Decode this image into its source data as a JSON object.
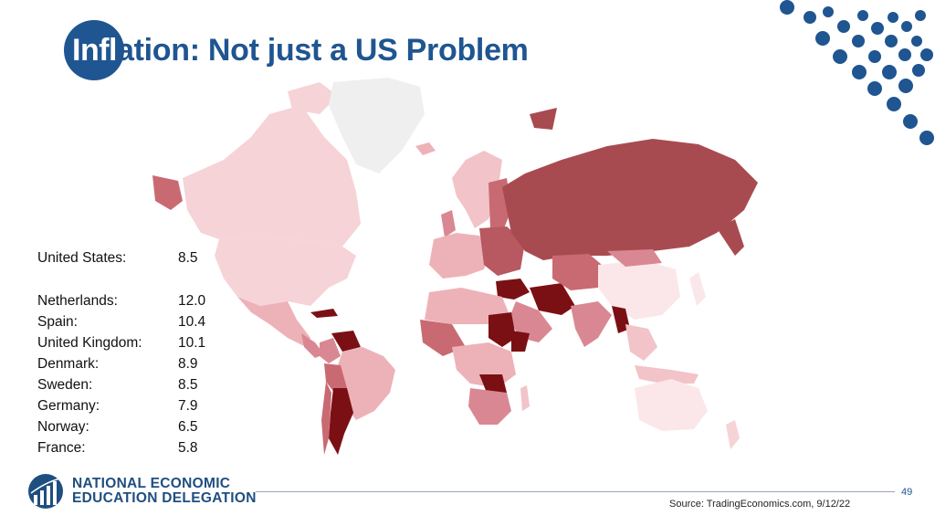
{
  "title": {
    "part1": "Infl",
    "part2": "ation: Not just a US Problem"
  },
  "stats": [
    {
      "country": "United States:",
      "value": "8.5"
    },
    {
      "country": "Netherlands:",
      "value": "12.0"
    },
    {
      "country": "Spain:",
      "value": "10.4"
    },
    {
      "country": "United Kingdom:",
      "value": "10.1"
    },
    {
      "country": "Denmark:",
      "value": "8.9"
    },
    {
      "country": "Sweden:",
      "value": "8.5"
    },
    {
      "country": "Germany:",
      "value": "7.9"
    },
    {
      "country": "Norway:",
      "value": "6.5"
    },
    {
      "country": "France:",
      "value": "5.8"
    }
  ],
  "logo": {
    "line1": "NATIONAL ECONOMIC",
    "line2": "EDUCATION DELEGATION"
  },
  "page_number": "49",
  "source": "Source: TradingEconomics.com, 9/12/22",
  "colors": {
    "brand": "#1f5591",
    "low": "#f7e1e3",
    "mid": "#d98893",
    "high": "#a84b50",
    "highest": "#7b1014",
    "nodata": "#efefef"
  }
}
